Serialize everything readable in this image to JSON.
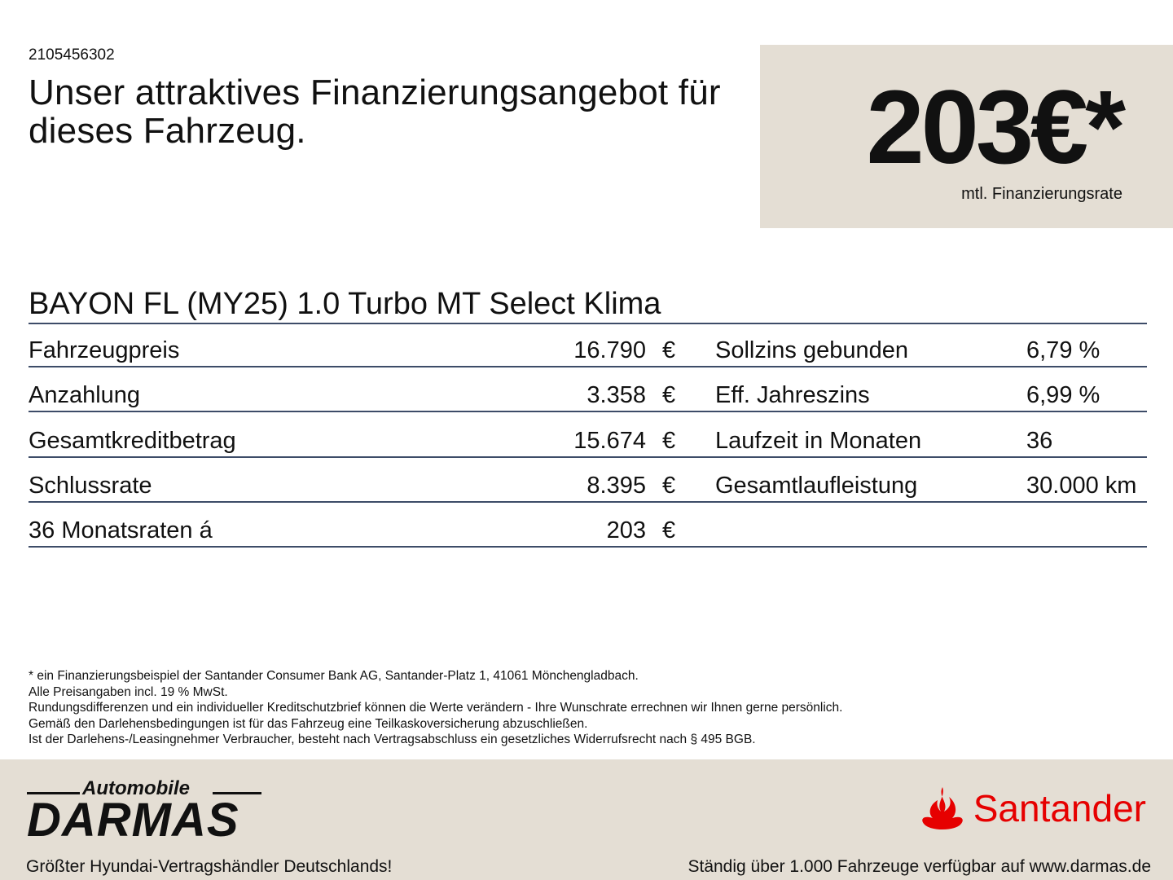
{
  "offer_id": "2105456302",
  "headline": "Unser attraktives Finanzierungsangebot für dieses Fahrzeug.",
  "price": {
    "value": "203€*",
    "label": "mtl. Finanzierungsrate"
  },
  "model": "BAYON FL (MY25) 1.0 Turbo MT Select Klima",
  "rows": [
    {
      "label": "Fahrzeugpreis",
      "value": "16.790",
      "currency": "€",
      "r_label": "Sollzins gebunden",
      "r_value": "6,79 %"
    },
    {
      "label": "Anzahlung",
      "value": "3.358",
      "currency": "€",
      "r_label": "Eff. Jahreszins",
      "r_value": "6,99 %"
    },
    {
      "label": "Gesamtkreditbetrag",
      "value": "15.674",
      "currency": "€",
      "r_label": "Laufzeit in Monaten",
      "r_value": "36"
    },
    {
      "label": "Schlussrate",
      "value": "8.395",
      "currency": "€",
      "r_label": "Gesamtlaufleistung",
      "r_value": "30.000 km"
    },
    {
      "label": "36 Monatsraten á",
      "value": "203",
      "currency": "€",
      "r_label": "",
      "r_value": ""
    }
  ],
  "notes": [
    "* ein Finanzierungsbeispiel der Santander Consumer Bank AG, Santander-Platz 1, 41061 Mönchengladbach.",
    "Alle Preisangaben incl. 19 % MwSt.",
    "Rundungsdifferenzen und ein individueller Kreditschutzbrief können die Werte verändern - Ihre Wunschrate errechnen wir Ihnen gerne persönlich.",
    "Gemäß den Darlehensbedingungen ist für das Fahrzeug eine Teilkaskoversicherung abzuschließen.",
    "Ist der Darlehens-/Leasingnehmer Verbraucher, besteht nach Vertragsabschluss ein gesetzliches Widerrufsrecht nach § 495 BGB."
  ],
  "footer": {
    "dealer_logo_top": "Automobile",
    "dealer_logo_main": "DARMAS",
    "bank_logo": "Santander",
    "slogan_left": "Größter Hyundai-Vertragshändler Deutschlands!",
    "slogan_right": "Ständig über 1.000 Fahrzeuge verfügbar auf www.darmas.de"
  },
  "colors": {
    "beige": "#e4ded4",
    "rule": "#3d4c68",
    "santander_red": "#e60000"
  }
}
